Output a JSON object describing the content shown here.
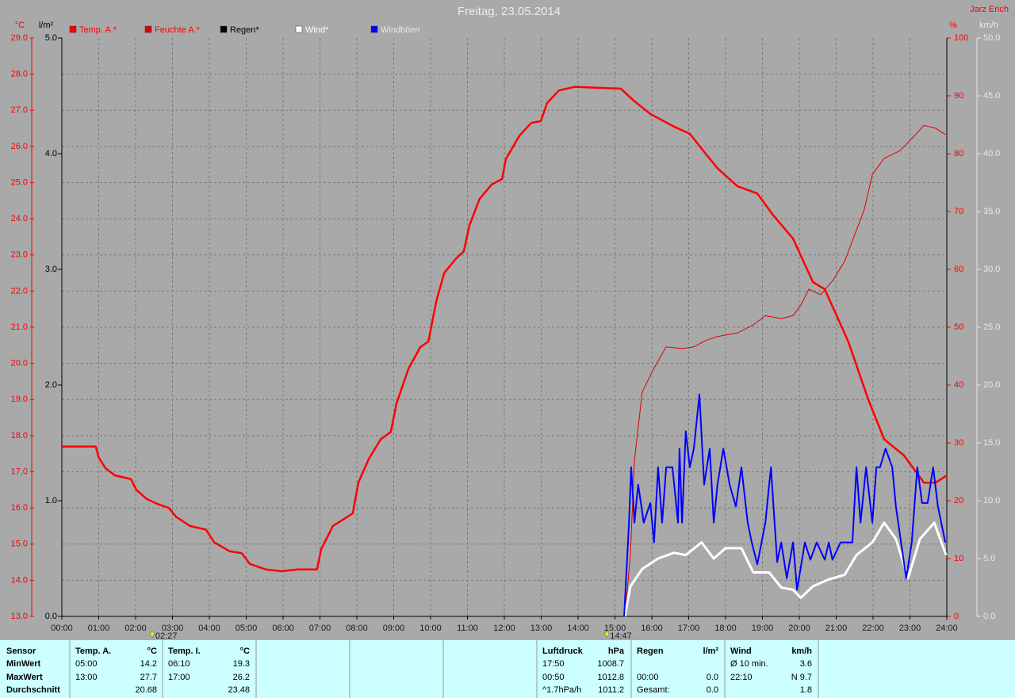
{
  "chart_data": {
    "type": "line",
    "title": "Freitag, 23.05.2014",
    "author": "Jarz Erich",
    "y_label": "°C",
    "y2_label": "%",
    "y3_label": "l/m²",
    "y4_label": "km/h",
    "xlim": [
      0,
      24
    ],
    "xticks": [
      {
        "value": 0,
        "label": "00:00"
      },
      {
        "value": 1,
        "label": "01:00"
      },
      {
        "value": 2,
        "label": "02:00"
      },
      {
        "value": 3,
        "label": "03:00"
      },
      {
        "value": 4,
        "label": "04:00"
      },
      {
        "value": 5,
        "label": "05:00"
      },
      {
        "value": 6,
        "label": "06:00"
      },
      {
        "value": 7,
        "label": "07:00"
      },
      {
        "value": 8,
        "label": "08:00"
      },
      {
        "value": 9,
        "label": "09:00"
      },
      {
        "value": 10,
        "label": "10:00"
      },
      {
        "value": 11,
        "label": "11:00"
      },
      {
        "value": 12,
        "label": "12:00"
      },
      {
        "value": 13,
        "label": "13:00"
      },
      {
        "value": 14,
        "label": "14:00"
      },
      {
        "value": 15,
        "label": "15:00"
      },
      {
        "value": 16,
        "label": "16:00"
      },
      {
        "value": 17,
        "label": "17:00"
      },
      {
        "value": 18,
        "label": "18:00"
      },
      {
        "value": 19,
        "label": "19:00"
      },
      {
        "value": 20,
        "label": "20:00"
      },
      {
        "value": 21,
        "label": "21:00"
      },
      {
        "value": 22,
        "label": "22:00"
      },
      {
        "value": 23,
        "label": "23:00"
      },
      {
        "value": 24,
        "label": "24:00"
      }
    ],
    "markers": [
      {
        "value": 2.45,
        "label": "02:27"
      },
      {
        "value": 14.78,
        "label": "14:47"
      }
    ],
    "ylim": [
      13,
      29
    ],
    "yticks": [
      {
        "value": 13,
        "label": "13.0"
      },
      {
        "value": 14,
        "label": "14.0"
      },
      {
        "value": 15,
        "label": "15.0"
      },
      {
        "value": 16,
        "label": "16.0"
      },
      {
        "value": 17,
        "label": "17.0"
      },
      {
        "value": 18,
        "label": "18.0"
      },
      {
        "value": 19,
        "label": "19.0"
      },
      {
        "value": 20,
        "label": "20.0"
      },
      {
        "value": 21,
        "label": "21.0"
      },
      {
        "value": 22,
        "label": "22.0"
      },
      {
        "value": 23,
        "label": "23.0"
      },
      {
        "value": 24,
        "label": "24.0"
      },
      {
        "value": 25,
        "label": "25.0"
      },
      {
        "value": 26,
        "label": "26.0"
      },
      {
        "value": 27,
        "label": "27.0"
      },
      {
        "value": 28,
        "label": "28.0"
      },
      {
        "value": 29,
        "label": "29.0"
      }
    ],
    "y2lim": [
      0,
      100
    ],
    "y2ticks": [
      0,
      10,
      20,
      30,
      40,
      50,
      60,
      70,
      80,
      90,
      100
    ],
    "y3lim": [
      0,
      5
    ],
    "y3ticks": [
      {
        "value": 0,
        "label": "0.0"
      },
      {
        "value": 1,
        "label": "1.0"
      },
      {
        "value": 2,
        "label": "2.0"
      },
      {
        "value": 3,
        "label": "3.0"
      },
      {
        "value": 4,
        "label": "4.0"
      },
      {
        "value": 5,
        "label": "5.0"
      }
    ],
    "y4lim": [
      0,
      50
    ],
    "y4ticks": [
      {
        "value": 0,
        "label": "0.0"
      },
      {
        "value": 5,
        "label": "5.0"
      },
      {
        "value": 10,
        "label": "10.0"
      },
      {
        "value": 15,
        "label": "15.0"
      },
      {
        "value": 20,
        "label": "20.0"
      },
      {
        "value": 25,
        "label": "25.0"
      },
      {
        "value": 30,
        "label": "30.0"
      },
      {
        "value": 35,
        "label": "35.0"
      },
      {
        "value": 40,
        "label": "40.0"
      },
      {
        "value": 45,
        "label": "45.0"
      },
      {
        "value": 50,
        "label": "50.0"
      }
    ],
    "grid": true,
    "series": [
      {
        "name": "Temp. A.*",
        "color": "#ff0000",
        "label_color": "#ff0000",
        "axis": "y",
        "width": 2.5,
        "x": [
          0,
          0.92,
          1.0,
          1.18,
          1.44,
          1.87,
          2.02,
          2.3,
          2.62,
          2.9,
          3.1,
          3.48,
          3.91,
          4.13,
          4.56,
          4.88,
          5.1,
          5.53,
          5.96,
          6.39,
          6.92,
          7.03,
          7.35,
          7.89,
          8.04,
          8.32,
          8.65,
          8.92,
          9.08,
          9.4,
          9.72,
          9.94,
          10.15,
          10.37,
          10.69,
          10.9,
          11.05,
          11.33,
          11.66,
          11.94,
          12.04,
          12.41,
          12.73,
          12.99,
          13.16,
          13.48,
          13.91,
          15.16,
          15.53,
          15.96,
          16.6,
          17.03,
          17.46,
          17.78,
          18.32,
          18.86,
          19.29,
          19.83,
          20.37,
          20.69,
          21.33,
          21.87,
          22.3,
          22.84,
          23.38,
          23.7,
          24.0
        ],
        "values": [
          17.7,
          17.7,
          17.4,
          17.1,
          16.9,
          16.8,
          16.5,
          16.25,
          16.1,
          16.0,
          15.75,
          15.5,
          15.4,
          15.05,
          14.8,
          14.75,
          14.45,
          14.3,
          14.25,
          14.3,
          14.3,
          14.85,
          15.5,
          15.85,
          16.7,
          17.35,
          17.9,
          18.1,
          18.9,
          19.85,
          20.45,
          20.6,
          21.7,
          22.5,
          22.9,
          23.1,
          23.8,
          24.55,
          24.95,
          25.1,
          25.65,
          26.3,
          26.65,
          26.7,
          27.2,
          27.55,
          27.65,
          27.6,
          27.25,
          26.9,
          26.55,
          26.35,
          25.8,
          25.4,
          24.9,
          24.7,
          24.1,
          23.45,
          22.25,
          22.05,
          20.6,
          19.0,
          17.9,
          17.45,
          16.7,
          16.7,
          16.9
        ]
      },
      {
        "name": "Feuchte A.*",
        "color": "#e00000",
        "label_color": "#ff0000",
        "axis": "y2",
        "width": 1,
        "x": [
          15.27,
          15.42,
          15.53,
          15.74,
          16.06,
          16.39,
          16.82,
          17.14,
          17.46,
          17.78,
          18.32,
          18.75,
          19.08,
          19.51,
          19.83,
          20.04,
          20.26,
          20.58,
          20.9,
          21.23,
          21.55,
          21.76,
          21.98,
          22.3,
          22.73,
          23.05,
          23.38,
          23.7,
          23.96
        ],
        "values": [
          0,
          10.7,
          27,
          38.8,
          42.9,
          46.6,
          46.3,
          46.6,
          47.7,
          48.4,
          49,
          50.4,
          52,
          51.5,
          52,
          53.8,
          56.6,
          55.6,
          58,
          61.4,
          66.8,
          70.3,
          76.4,
          79.2,
          80.5,
          82.6,
          84.9,
          84.4,
          83.3
        ]
      },
      {
        "name": "Regen*",
        "color": "#000000",
        "label_color": "#000000",
        "axis": "y3",
        "width": 2,
        "x": [],
        "values": []
      },
      {
        "name": "Wind*",
        "color": "#ffffff",
        "label_color": "#ffffff",
        "axis": "y4",
        "width": 3,
        "x": [
          15.27,
          15.42,
          15.74,
          16.17,
          16.6,
          16.92,
          17.35,
          17.68,
          18.0,
          18.43,
          18.75,
          19.18,
          19.51,
          19.83,
          20.04,
          20.37,
          20.8,
          21.23,
          21.55,
          21.98,
          22.3,
          22.62,
          22.95,
          23.27,
          23.66,
          23.98
        ],
        "values": [
          0,
          2.6,
          4.1,
          5,
          5.5,
          5.3,
          6.4,
          5,
          5.9,
          5.9,
          3.8,
          3.8,
          2.5,
          2.3,
          1.6,
          2.6,
          3.2,
          3.6,
          5.3,
          6.4,
          8.1,
          6.7,
          3.3,
          6.7,
          8.1,
          5.3
        ]
      },
      {
        "name": "Windböen",
        "color": "#0000ff",
        "label_color": "#e8e8e8",
        "axis": "y4",
        "width": 2,
        "x": [
          15.25,
          15.38,
          15.44,
          15.53,
          15.63,
          15.78,
          15.96,
          16.06,
          16.17,
          16.28,
          16.39,
          16.56,
          16.71,
          16.75,
          16.82,
          16.92,
          17.03,
          17.14,
          17.29,
          17.42,
          17.57,
          17.68,
          17.78,
          17.94,
          18.11,
          18.28,
          18.43,
          18.6,
          18.71,
          18.86,
          19.08,
          19.23,
          19.4,
          19.51,
          19.66,
          19.83,
          19.94,
          20.15,
          20.3,
          20.47,
          20.69,
          20.8,
          20.9,
          21.12,
          21.44,
          21.55,
          21.66,
          21.81,
          21.98,
          22.09,
          22.19,
          22.34,
          22.52,
          22.62,
          22.9,
          23.05,
          23.2,
          23.33,
          23.48,
          23.63,
          23.76,
          23.96
        ],
        "values": [
          0,
          8.1,
          12.9,
          8.1,
          11.4,
          8.1,
          9.8,
          6.4,
          12.9,
          8.1,
          12.9,
          12.9,
          8.1,
          14.5,
          8.1,
          16.0,
          12.9,
          14.5,
          19.2,
          11.4,
          14.5,
          8.1,
          11.4,
          14.5,
          11.4,
          9.5,
          12.9,
          8.1,
          6.4,
          4.5,
          8.1,
          12.9,
          4.7,
          6.4,
          3.3,
          6.4,
          2.3,
          6.4,
          4.9,
          6.4,
          4.9,
          6.4,
          4.9,
          6.4,
          6.4,
          12.9,
          8.1,
          12.9,
          8.1,
          12.9,
          12.9,
          14.5,
          12.9,
          9.5,
          3.3,
          6.4,
          12.9,
          9.8,
          9.8,
          12.9,
          9.5,
          6.4
        ]
      }
    ]
  },
  "stats": {
    "row_labels": [
      "Sensor",
      "MinWert",
      "MaxWert",
      "Durchschnitt"
    ],
    "columns": [
      {
        "header": "Temp. A.",
        "unit": "°C",
        "rows": [
          {
            "time": "05:00",
            "value": "14.2"
          },
          {
            "time": "13:00",
            "value": "27.7"
          },
          {
            "value": "20.68"
          }
        ]
      },
      {
        "header": "Temp. I.",
        "unit": "°C",
        "rows": [
          {
            "time": "06:10",
            "value": "19.3"
          },
          {
            "time": "17:00",
            "value": "26.2"
          },
          {
            "value": "23.48"
          }
        ]
      },
      {
        "header": "Luftdruck",
        "unit": "hPa",
        "rows": [
          {
            "time": "17:50",
            "value": "1008.7"
          },
          {
            "time": "00:50",
            "value": "1012.8"
          },
          {
            "time": "^1.7hPa/h",
            "value": "1011.2"
          }
        ]
      },
      {
        "header": "Regen",
        "unit": "l/m²",
        "rows": [
          null,
          {
            "time": "00:00",
            "value": "0.0"
          },
          {
            "time": "Gesamt:",
            "value": "0.0"
          }
        ]
      },
      {
        "header": "Wind",
        "unit": "km/h",
        "rows": [
          {
            "time": "Ø 10 min.",
            "value": "3.6"
          },
          {
            "time": "22:10",
            "value": "N 9.7"
          },
          {
            "value": "1.8"
          }
        ]
      }
    ]
  }
}
